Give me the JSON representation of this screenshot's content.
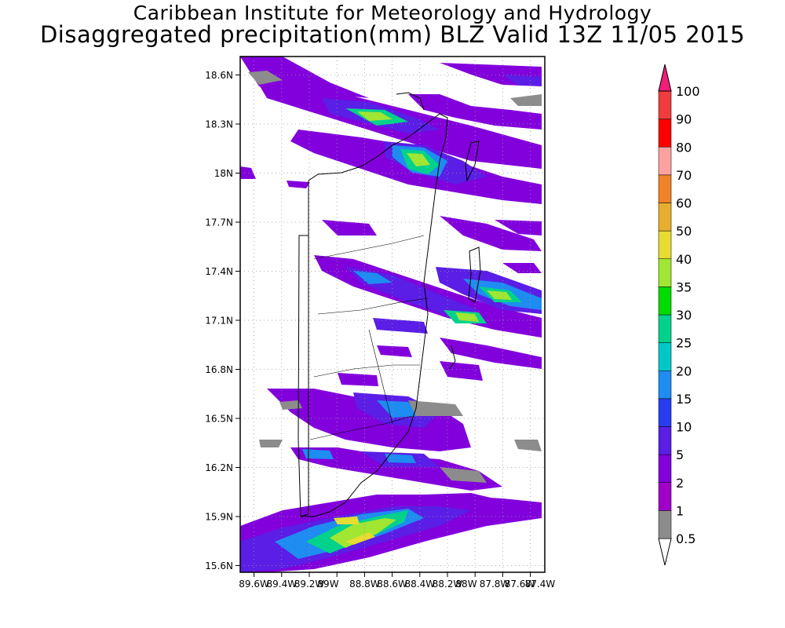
{
  "titles": {
    "line1": "Caribbean Institute for Meteorology and Hydrology",
    "line2": "Disaggregated precipitation(mm) BLZ Valid 13Z 11/05 2015"
  },
  "map": {
    "lat_labels": [
      "18.6N",
      "18.3N",
      "18N",
      "17.7N",
      "17.4N",
      "17.1N",
      "16.8N",
      "16.5N",
      "16.2N",
      "15.9N",
      "15.6N"
    ],
    "lon_labels": [
      "89.6W",
      "89.4W",
      "89.2W",
      "89W",
      "88.8W",
      "88.6W",
      "88.4W",
      "88.2W",
      "88W",
      "87.8W",
      "87.6W",
      "87.4W"
    ]
  },
  "legend": {
    "levels": [
      "0.5",
      "1",
      "2",
      "5",
      "10",
      "15",
      "20",
      "25",
      "30",
      "35",
      "40",
      "50",
      "60",
      "70",
      "80",
      "90",
      "100"
    ],
    "colors": [
      "#8c8c8c",
      "#a000c8",
      "#8200dc",
      "#5a1ee6",
      "#283cf0",
      "#1e8cf0",
      "#00c8c8",
      "#00d28c",
      "#00dc00",
      "#a0e632",
      "#e6dc32",
      "#e6af2d",
      "#f08228",
      "#ffa0a0",
      "#fa0000",
      "#f03c3c",
      "#f01e78"
    ]
  }
}
